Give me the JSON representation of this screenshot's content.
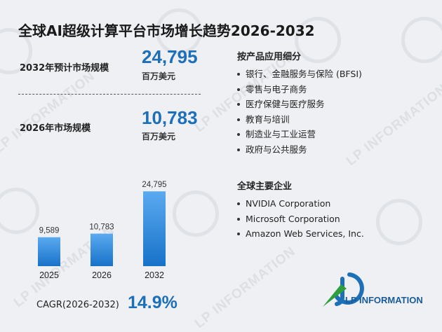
{
  "title": "全球AI超级计算平台市场增长趋势2026-2032",
  "stats": [
    {
      "label": "2032年预计市场规模",
      "value": "24,795",
      "unit": "百万美元"
    },
    {
      "label": "2026年市场规模",
      "value": "10,783",
      "unit": "百万美元"
    }
  ],
  "chart_data": {
    "type": "bar",
    "categories": [
      "2025",
      "2026",
      "2032"
    ],
    "values": [
      9589,
      10783,
      24795
    ],
    "value_labels": [
      "9,589",
      "10,783",
      "24,795"
    ],
    "ylim": [
      0,
      26000
    ],
    "grid": false,
    "bar_color": "#1e88e5"
  },
  "cagr": {
    "label": "CAGR(2026-2032)",
    "value": "14.9%"
  },
  "segments": {
    "heading": "按产品应用细分",
    "items": [
      "银行、金融服务与保险 (BFSI)",
      "零售与电子商务",
      "医疗保健与医疗服务",
      "教育与培训",
      "制造业与工业运营",
      "政府与公共服务"
    ]
  },
  "companies": {
    "heading": "全球主要企业",
    "items": [
      "NVIDIA Corporation",
      "Microsoft Corporation",
      "Amazon Web Services, Inc."
    ]
  },
  "brand": {
    "name": "LP INFORMATION",
    "watermark": "LP INFORMATION"
  },
  "colors": {
    "accent": "#1d6fb8",
    "bar": "#1e88e5",
    "brand_green": "#2e9e3e"
  }
}
